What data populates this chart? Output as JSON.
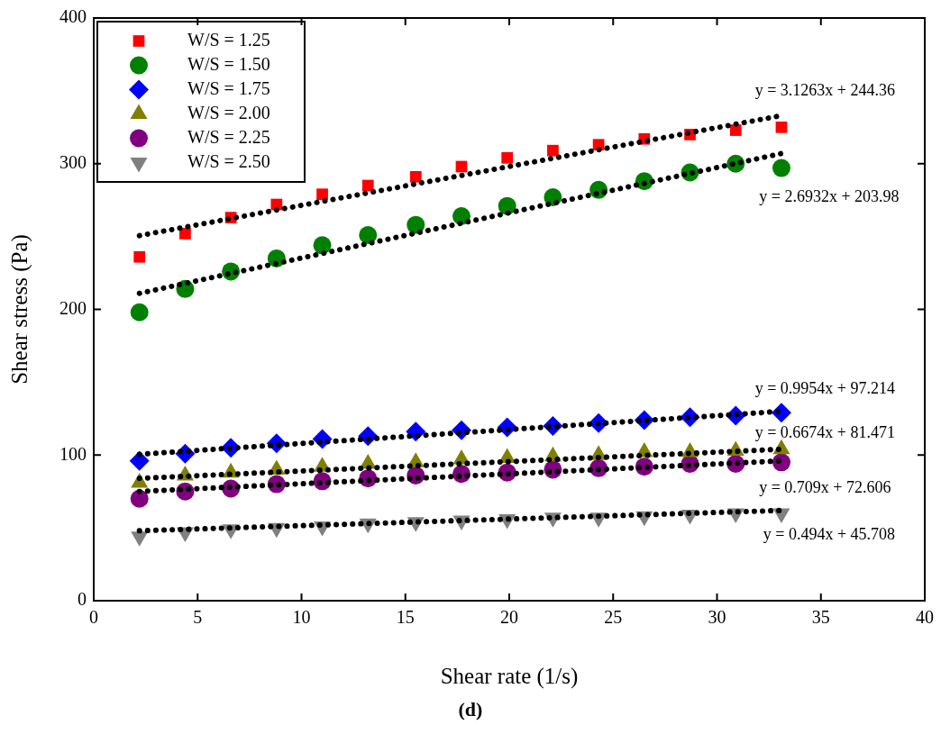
{
  "chart_data": {
    "type": "scatter",
    "xlabel": "Shear rate (1/s)",
    "ylabel": "Shear stress (Pa)",
    "x": [
      2.2,
      4.4,
      6.6,
      8.8,
      11.0,
      13.2,
      15.5,
      17.7,
      19.9,
      22.1,
      24.3,
      26.5,
      28.7,
      30.9,
      33.1
    ],
    "xlim": [
      0,
      40
    ],
    "xticks": [
      0,
      5,
      10,
      15,
      20,
      25,
      30,
      35,
      40
    ],
    "ylim": [
      0,
      400
    ],
    "yticks": [
      0,
      100,
      200,
      300,
      400
    ],
    "grid": false,
    "legend": "top left",
    "series": [
      {
        "name": "W/S = 1.25",
        "color": "#ff0000",
        "marker": "square",
        "values": [
          236,
          252,
          263,
          272,
          279,
          285,
          291,
          298,
          304,
          309,
          313,
          317,
          320,
          323,
          325
        ]
      },
      {
        "name": "W/S = 1.50",
        "color": "#008000",
        "marker": "circle",
        "values": [
          198,
          214,
          226,
          235,
          244,
          251,
          258,
          264,
          271,
          277,
          282,
          288,
          294,
          300,
          297
        ]
      },
      {
        "name": "W/S = 1.75",
        "color": "#0000ff",
        "marker": "diamond",
        "values": [
          96,
          101,
          105,
          108,
          111,
          113,
          116,
          117,
          119,
          120,
          122,
          124,
          126,
          127,
          129
        ]
      },
      {
        "name": "W/S = 2.00",
        "color": "#808000",
        "marker": "triangle",
        "values": [
          81,
          86,
          88,
          90,
          92,
          94,
          95,
          97,
          98,
          99,
          100,
          102,
          102,
          103,
          104
        ]
      },
      {
        "name": "W/S = 2.25",
        "color": "#800080",
        "marker": "circle",
        "values": [
          70,
          75,
          77,
          80,
          82,
          84,
          86,
          87,
          88,
          90,
          91,
          92,
          94,
          94,
          95
        ]
      },
      {
        "name": "W/S = 2.50",
        "color": "#808080",
        "marker": "triangle-down",
        "values": [
          44,
          47,
          49,
          50,
          51,
          53,
          54,
          55,
          56,
          57,
          57,
          58,
          59,
          60,
          60
        ]
      },
      {
        "type": "line",
        "color": "#000000",
        "line_style": "dotted",
        "marker": "none",
        "values": [
          250.6,
          null,
          null,
          null,
          null,
          null,
          null,
          null,
          null,
          null,
          null,
          null,
          null,
          null,
          333
        ]
      },
      {
        "type": "line",
        "color": "#000000",
        "line_style": "dotted",
        "marker": "none",
        "values": [
          211,
          null,
          null,
          null,
          null,
          null,
          null,
          null,
          null,
          null,
          null,
          null,
          null,
          null,
          307
        ]
      },
      {
        "type": "line",
        "color": "#000000",
        "line_style": "dotted",
        "marker": "none",
        "values": [
          100.5,
          null,
          null,
          null,
          null,
          null,
          null,
          null,
          null,
          null,
          null,
          null,
          null,
          null,
          130
        ]
      },
      {
        "type": "line",
        "color": "#000000",
        "line_style": "dotted",
        "marker": "none",
        "values": [
          84,
          null,
          null,
          null,
          null,
          null,
          null,
          null,
          null,
          null,
          null,
          null,
          null,
          null,
          104
        ]
      },
      {
        "type": "line",
        "color": "#000000",
        "line_style": "dotted",
        "marker": "none",
        "values": [
          75,
          null,
          null,
          null,
          null,
          null,
          null,
          null,
          null,
          null,
          null,
          null,
          null,
          null,
          96
        ]
      },
      {
        "type": "line",
        "color": "#000000",
        "line_style": "dotted",
        "marker": "none",
        "values": [
          48,
          null,
          null,
          null,
          null,
          null,
          null,
          null,
          null,
          null,
          null,
          null,
          null,
          null,
          62
        ]
      }
    ],
    "annotations": [
      "y = 3.1263x + 244.36",
      "y = 2.6932x + 203.98",
      "y = 0.9954x + 97.214",
      "y = 0.6674x + 81.471",
      "y = 0.709x + 72.606",
      "y = 0.494x + 45.708",
      "(d)"
    ]
  }
}
